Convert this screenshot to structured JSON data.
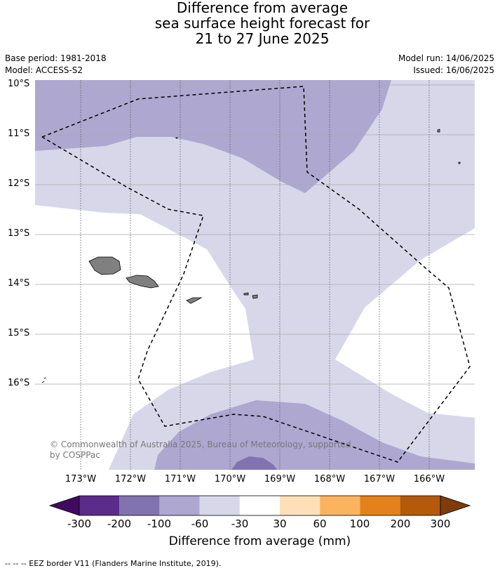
{
  "title": {
    "line1": "Difference from average",
    "line2": "sea surface height forecast for",
    "line3": "21 to 27 June 2025"
  },
  "meta": {
    "base_period": "Base period: 1981-2018",
    "model": "Model: ACCESS-S2",
    "model_run": "Model run: 14/06/2025",
    "issued": "Issued: 16/06/2025"
  },
  "map": {
    "lat_labels": [
      "10°S",
      "11°S",
      "12°S",
      "13°S",
      "14°S",
      "15°S",
      "16°S"
    ],
    "lon_labels": [
      "173°W",
      "172°W",
      "171°W",
      "170°W",
      "169°W",
      "168°W",
      "167°W",
      "166°W"
    ],
    "copyright_line1": "© Commonwealth of Australia 2025, Bureau of Meteorology, supported",
    "copyright_line2": "by COSPPac",
    "colors": {
      "n200_100": "#8172b0",
      "n100_60": "#aea7d0",
      "n60_30": "#d8d7ea",
      "land": "#808080",
      "eez": "#000000"
    }
  },
  "colorbar": {
    "ticks": [
      "-300",
      "-200",
      "-100",
      "-60",
      "-30",
      "30",
      "60",
      "100",
      "200",
      "300"
    ],
    "colors": [
      "#3f0a60",
      "#5b2c8b",
      "#8172b0",
      "#aea7d0",
      "#d8d7ea",
      "#ffffff",
      "#fde0b8",
      "#fbb35f",
      "#e3821a",
      "#b5590b",
      "#7f3b09"
    ],
    "label": "Difference from average (mm)"
  },
  "footer": {
    "legend": "--  --  -- EEZ border V11 (Flanders Marine Institute, 2019)."
  }
}
